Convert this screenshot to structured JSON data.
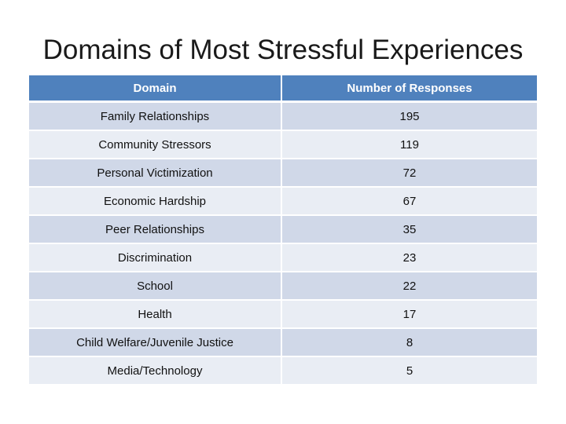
{
  "title": "Domains of Most Stressful Experiences",
  "table": {
    "headers": [
      "Domain",
      "Number of Responses"
    ],
    "rows": [
      [
        "Family Relationships",
        "195"
      ],
      [
        "Community Stressors",
        "119"
      ],
      [
        "Personal Victimization",
        "72"
      ],
      [
        "Economic Hardship",
        "67"
      ],
      [
        "Peer Relationships",
        "35"
      ],
      [
        "Discrimination",
        "23"
      ],
      [
        "School",
        "22"
      ],
      [
        "Health",
        "17"
      ],
      [
        "Child Welfare/Juvenile Justice",
        "8"
      ],
      [
        "Media/Technology",
        "5"
      ]
    ]
  },
  "colors": {
    "header": "#4f81bd",
    "row_dark": "#d0d8e8",
    "row_light": "#e9edf4"
  }
}
